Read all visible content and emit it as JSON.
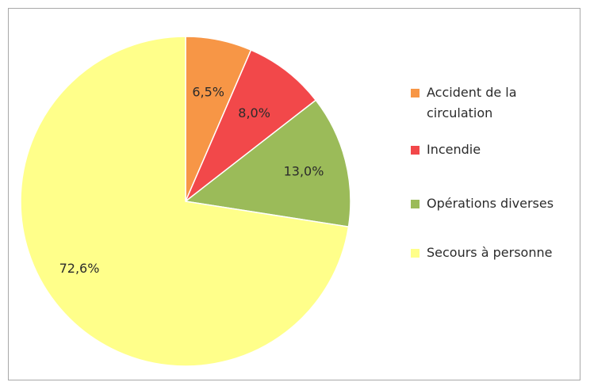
{
  "chart_data": {
    "type": "pie",
    "title": "",
    "slices": [
      {
        "label": "Accident de la circulation",
        "value": 6.5,
        "text": "6,5%",
        "color": "#f79646"
      },
      {
        "label": "Incendie",
        "value": 8.0,
        "text": "8,0%",
        "color": "#f2484a"
      },
      {
        "label": "Opérations diverses",
        "value": 13.0,
        "text": "13,0%",
        "color": "#9bbb59"
      },
      {
        "label": "Secours à personne",
        "value": 72.6,
        "text": "72,6%",
        "color": "#ffff8a"
      }
    ],
    "legend_placement": "right",
    "start_angle": "top, clockwise"
  },
  "legend": {
    "items": [
      {
        "label_line1": "Accident de la",
        "label_line2": "circulation"
      },
      {
        "label_line1": "Incendie"
      },
      {
        "label_line1": "Opérations diverses"
      },
      {
        "label_line1": "Secours à personne"
      }
    ]
  }
}
